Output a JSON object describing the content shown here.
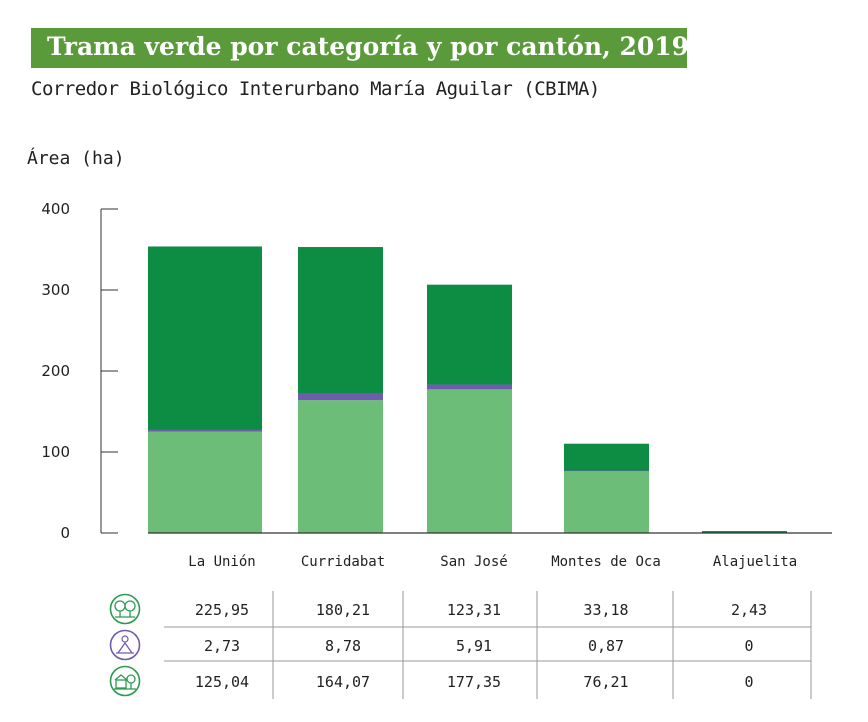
{
  "title": "Trama verde por categoría y por cantón, 2019",
  "subtitle": "Corredor Biológico Interurbano María Aguilar (CBIMA)",
  "chart_data": {
    "type": "bar",
    "stacked": true,
    "ylabel": "Área (ha)",
    "ylim": [
      0,
      400
    ],
    "yticks": [
      "0",
      "100",
      "200",
      "300",
      "400"
    ],
    "categories": [
      "La Unión",
      "Curridabat",
      "San José",
      "Montes de Oca",
      "Alajuelita"
    ],
    "series": [
      {
        "icon": "trees-icon",
        "color": "#6bbd78",
        "values": [
          125.04,
          164.07,
          177.35,
          76.21,
          0
        ],
        "labels": [
          "125,04",
          "164,07",
          "177,35",
          "76,21",
          "0"
        ]
      },
      {
        "icon": "park-icon",
        "color": "#6f5cb0",
        "values": [
          2.73,
          8.78,
          5.91,
          0.87,
          0
        ],
        "labels": [
          "2,73",
          "8,78",
          "5,91",
          "0,87",
          "0"
        ]
      },
      {
        "icon": "forest-icon",
        "color": "#0d8c44",
        "values": [
          225.95,
          180.21,
          123.31,
          33.18,
          2.43
        ],
        "labels": [
          "225,95",
          "180,21",
          "123,31",
          "33,18",
          "2,43"
        ]
      }
    ]
  },
  "table": {
    "row_order": [
      2,
      1,
      0
    ],
    "icon_colors": [
      "#2f9a52",
      "#6f5cb0",
      "#2f9a52"
    ]
  }
}
